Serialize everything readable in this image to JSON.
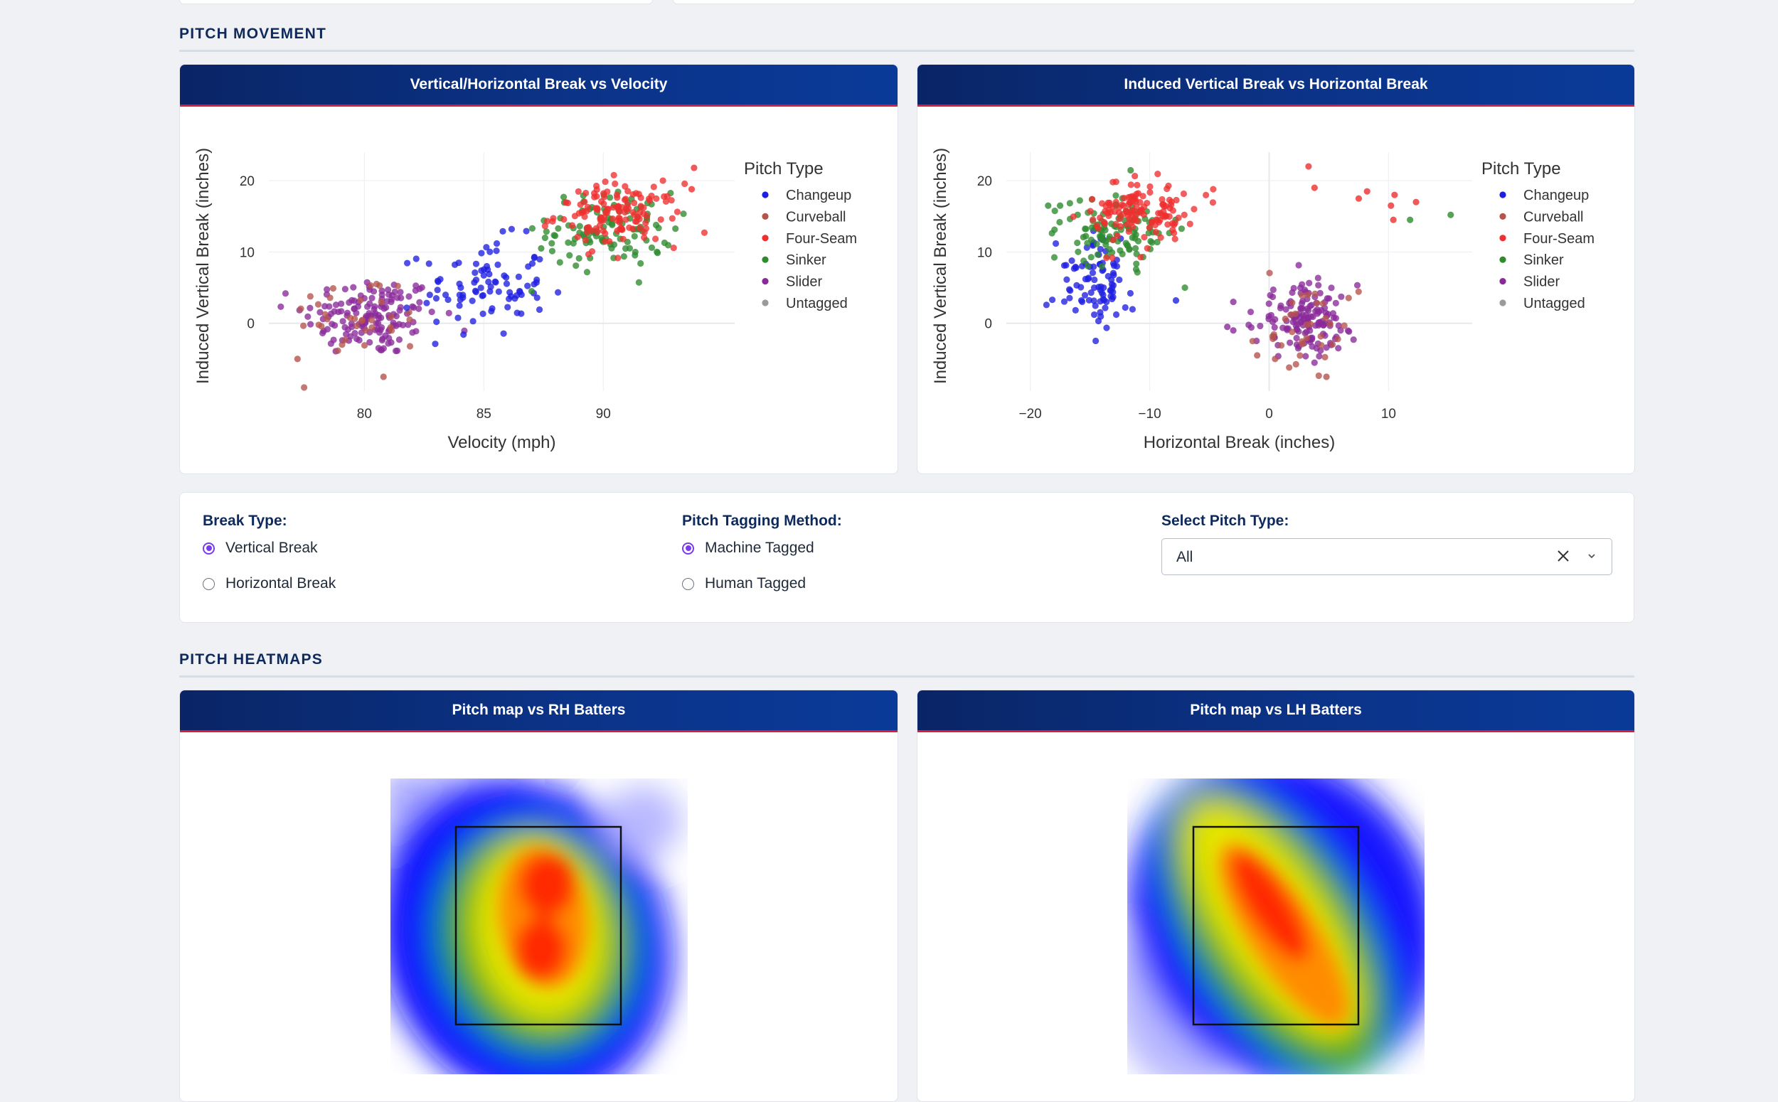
{
  "sections": {
    "movement_title": "PITCH MOVEMENT",
    "heatmaps_title": "PITCH HEATMAPS"
  },
  "pitch_colors": {
    "Changeup": "#1f1fe0",
    "Curveball": "#b5534d",
    "Four-Seam": "#ee3030",
    "Sinker": "#2e8b2e",
    "Slider": "#8a2a9a",
    "Untagged": "#9a9a9a"
  },
  "legend": {
    "title": "Pitch Type",
    "items": [
      "Changeup",
      "Curveball",
      "Four-Seam",
      "Sinker",
      "Slider",
      "Untagged"
    ]
  },
  "chart_data": [
    {
      "type": "scatter",
      "title": "Vertical/Horizontal Break vs Velocity",
      "xlabel": "Velocity (mph)",
      "ylabel": "Induced Vertical Break (inches)",
      "xlim": [
        76.0,
        95.5
      ],
      "ylim": [
        -9.5,
        24
      ],
      "xticks": [
        80,
        85,
        90
      ],
      "yticks": [
        0,
        10,
        20
      ],
      "grid": true,
      "legend_position": "right",
      "series": [
        {
          "name": "Changeup",
          "cluster": {
            "x": 85.0,
            "y": 5.0,
            "sx": 1.3,
            "sy": 3.4,
            "n": 90
          }
        },
        {
          "name": "Curveball",
          "cluster": {
            "x": 79.8,
            "y": 1.0,
            "sx": 1.5,
            "sy": 3.0,
            "n": 35
          }
        },
        {
          "name": "Four-Seam",
          "cluster": {
            "x": 90.6,
            "y": 15.2,
            "sx": 1.3,
            "sy": 2.2,
            "n": 130
          }
        },
        {
          "name": "Sinker",
          "cluster": {
            "x": 90.3,
            "y": 13.2,
            "sx": 1.3,
            "sy": 2.6,
            "n": 110
          }
        },
        {
          "name": "Slider",
          "cluster": {
            "x": 80.3,
            "y": 1.0,
            "sx": 1.4,
            "sy": 2.8,
            "n": 150
          }
        }
      ],
      "extra_points": [
        {
          "name": "Four-Seam",
          "x": 93.8,
          "y": 21.8
        },
        {
          "name": "Four-Seam",
          "x": 93.7,
          "y": 18.8
        },
        {
          "name": "Sinker",
          "x": 87.0,
          "y": 4.5
        },
        {
          "name": "Sinker",
          "x": 87.4,
          "y": 10.5
        },
        {
          "name": "Curveball",
          "x": 77.2,
          "y": -5.0
        },
        {
          "name": "Curveball",
          "x": 80.8,
          "y": -7.5
        }
      ]
    },
    {
      "type": "scatter",
      "title": "Induced Vertical Break vs Horizontal Break",
      "xlabel": "Horizontal Break (inches)",
      "ylabel": "Induced Vertical Break (inches)",
      "xlim": [
        -22,
        17
      ],
      "ylim": [
        -9.5,
        24
      ],
      "xticks": [
        -20,
        -10,
        0,
        10
      ],
      "xtick_labels": [
        "−20",
        "−10",
        "0",
        "10"
      ],
      "yticks": [
        0,
        10,
        20
      ],
      "grid": true,
      "legend_position": "right",
      "series": [
        {
          "name": "Changeup",
          "cluster": {
            "x": -14.5,
            "y": 5.5,
            "sx": 1.6,
            "sy": 3.2,
            "n": 90
          }
        },
        {
          "name": "Curveball",
          "cluster": {
            "x": 3.0,
            "y": -1.0,
            "sx": 2.3,
            "sy": 2.6,
            "n": 35
          }
        },
        {
          "name": "Four-Seam",
          "cluster": {
            "x": -10.5,
            "y": 15.5,
            "sx": 2.2,
            "sy": 2.2,
            "n": 130
          }
        },
        {
          "name": "Sinker",
          "cluster": {
            "x": -13.0,
            "y": 13.0,
            "sx": 2.2,
            "sy": 2.4,
            "n": 110
          }
        },
        {
          "name": "Slider",
          "cluster": {
            "x": 3.0,
            "y": 0.5,
            "sx": 2.0,
            "sy": 2.5,
            "n": 150
          }
        }
      ],
      "extra_points": [
        {
          "name": "Four-Seam",
          "x": 3.3,
          "y": 22.0
        },
        {
          "name": "Four-Seam",
          "x": 3.8,
          "y": 19.0
        },
        {
          "name": "Four-Seam",
          "x": 7.5,
          "y": 17.5
        },
        {
          "name": "Four-Seam",
          "x": 8.2,
          "y": 18.5
        },
        {
          "name": "Four-Seam",
          "x": 10.5,
          "y": 18.0
        },
        {
          "name": "Four-Seam",
          "x": 10.2,
          "y": 16.5
        },
        {
          "name": "Four-Seam",
          "x": 12.3,
          "y": 17.0
        },
        {
          "name": "Four-Seam",
          "x": 10.4,
          "y": 14.5
        },
        {
          "name": "Sinker",
          "x": 11.8,
          "y": 14.5
        },
        {
          "name": "Sinker",
          "x": 15.2,
          "y": 15.2
        },
        {
          "name": "Sinker",
          "x": -18.5,
          "y": 16.5
        },
        {
          "name": "Sinker",
          "x": -17.5,
          "y": 16.5
        },
        {
          "name": "Changeup",
          "x": -7.8,
          "y": 3.2
        },
        {
          "name": "Slider",
          "x": -3.0,
          "y": 3.0
        },
        {
          "name": "Slider",
          "x": -3.5,
          "y": -0.5
        },
        {
          "name": "Slider",
          "x": -3.0,
          "y": -1.0
        },
        {
          "name": "Curveball",
          "x": -1.0,
          "y": -4.5
        },
        {
          "name": "Curveball",
          "x": 0.5,
          "y": -5.0
        },
        {
          "name": "Curveball",
          "x": 4.8,
          "y": -7.5
        }
      ]
    }
  ],
  "controls": {
    "break_type": {
      "label": "Break Type:",
      "options": [
        "Vertical Break",
        "Horizontal Break"
      ],
      "selected": "Vertical Break"
    },
    "tagging": {
      "label": "Pitch Tagging Method:",
      "options": [
        "Machine Tagged",
        "Human Tagged"
      ],
      "selected": "Machine Tagged"
    },
    "pitch_select": {
      "label": "Select Pitch Type:",
      "value": "All"
    }
  },
  "heatmaps": {
    "rh_title": "Pitch map vs RH Batters",
    "lh_title": "Pitch map vs LH Batters"
  }
}
